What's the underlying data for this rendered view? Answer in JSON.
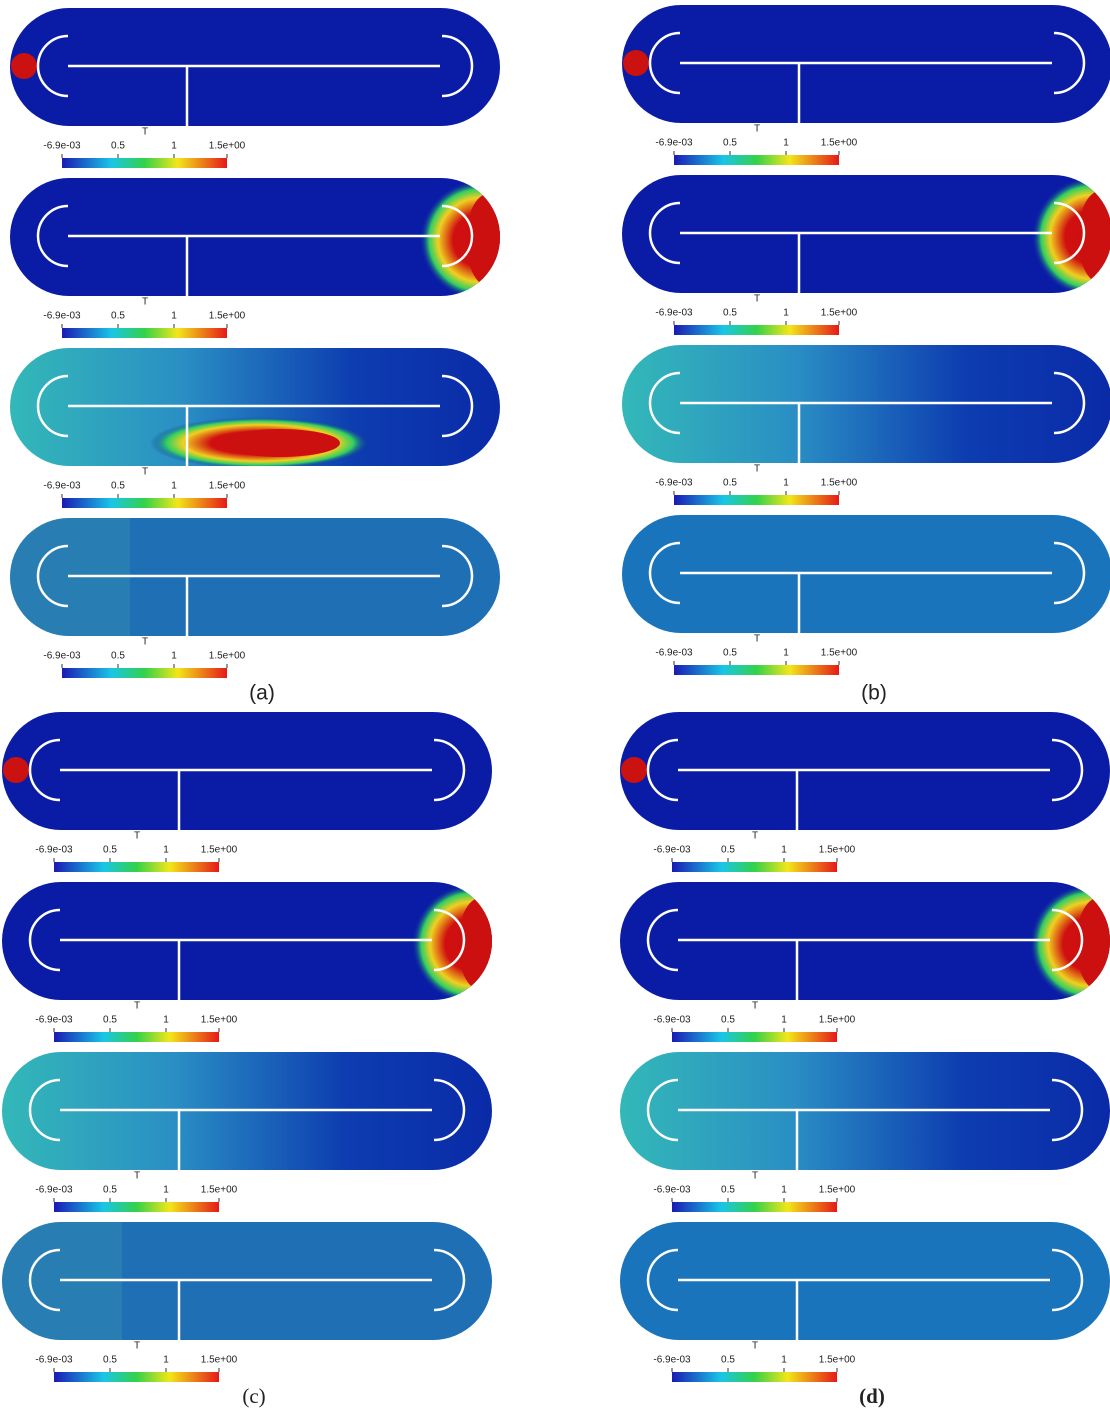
{
  "groups": [
    {
      "label": "(a)",
      "frames": [
        {
          "colorbar": {
            "title": "T",
            "ticks": [
              "-6.9e-03",
              "0.5",
              "1",
              "1.5e+00"
            ]
          }
        },
        {
          "colorbar": {
            "title": "T",
            "ticks": [
              "-6.9e-03",
              "0.5",
              "1",
              "1.5e+00"
            ]
          }
        },
        {
          "colorbar": {
            "title": "T",
            "ticks": [
              "-6.9e-03",
              "0.5",
              "1",
              "1.5e+00"
            ]
          }
        },
        {
          "colorbar": {
            "title": "T",
            "ticks": [
              "-6.9e-03",
              "0.5",
              "1",
              "1.5e+00"
            ]
          }
        }
      ]
    },
    {
      "label": "(b)",
      "frames": [
        {
          "colorbar": {
            "title": "T",
            "ticks": [
              "-6.9e-03",
              "0.5",
              "1",
              "1.5e+00"
            ]
          }
        },
        {
          "colorbar": {
            "title": "T",
            "ticks": [
              "-6.9e-03",
              "0.5",
              "1",
              "1.5e+00"
            ]
          }
        },
        {
          "colorbar": {
            "title": "T",
            "ticks": [
              "-6.9e-03",
              "0.5",
              "1",
              "1.5e+00"
            ]
          }
        },
        {
          "colorbar": {
            "title": "T",
            "ticks": [
              "-6.9e-03",
              "0.5",
              "1",
              "1.5e+00"
            ]
          }
        }
      ]
    },
    {
      "label": "(c)",
      "frames": [
        {
          "colorbar": {
            "title": "T",
            "ticks": [
              "-6.9e-03",
              "0.5",
              "1",
              "1.5e+00"
            ]
          }
        },
        {
          "colorbar": {
            "title": "T",
            "ticks": [
              "-6.9e-03",
              "0.5",
              "1",
              "1.5e+00"
            ]
          }
        },
        {
          "colorbar": {
            "title": "T",
            "ticks": [
              "-6.9e-03",
              "0.5",
              "1",
              "1.5e+00"
            ]
          }
        },
        {
          "colorbar": {
            "title": "T",
            "ticks": [
              "-6.9e-03",
              "0.5",
              "1",
              "1.5e+00"
            ]
          }
        }
      ]
    },
    {
      "label": "(d)",
      "frames": [
        {
          "colorbar": {
            "title": "T",
            "ticks": [
              "-6.9e-03",
              "0.5",
              "1",
              "1.5e+00"
            ]
          }
        },
        {
          "colorbar": {
            "title": "T",
            "ticks": [
              "-6.9e-03",
              "0.5",
              "1",
              "1.5e+00"
            ]
          }
        },
        {
          "colorbar": {
            "title": "T",
            "ticks": [
              "-6.9e-03",
              "0.5",
              "1",
              "1.5e+00"
            ]
          }
        },
        {
          "colorbar": {
            "title": "T",
            "ticks": [
              "-6.9e-03",
              "0.5",
              "1",
              "1.5e+00"
            ]
          }
        }
      ]
    }
  ]
}
